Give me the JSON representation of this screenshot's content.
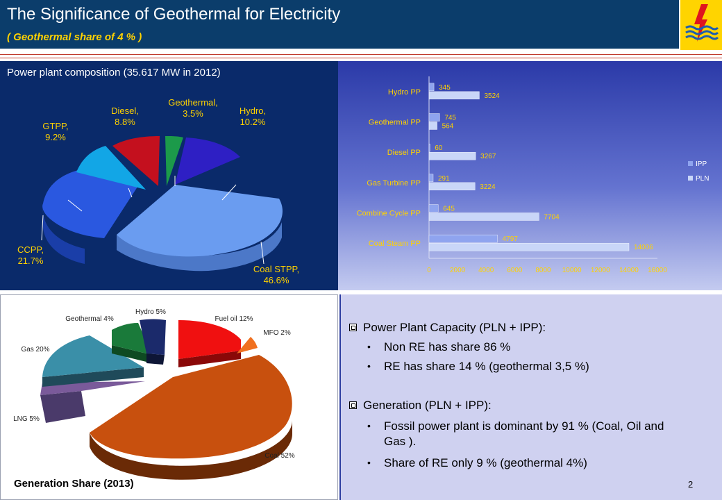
{
  "header": {
    "title": "The Significance of Geothermal for Electricity",
    "subtitle": "( Geothermal share of 4 % )"
  },
  "colors": {
    "header_bg": "#0b3d6b",
    "accent_yellow": "#ffd200",
    "rule_red": "#c0392b"
  },
  "logo": {
    "icon": "pln-lightning-logo-icon"
  },
  "pie_2012": {
    "title": "Power plant composition (35.617 MW in 2012)",
    "labels": {
      "geothermal": [
        "Geothermal,",
        "3.5%"
      ],
      "hydro": [
        "Hydro,",
        "10.2%"
      ],
      "diesel": [
        "Diesel,",
        "8.8%"
      ],
      "gtpp": [
        "GTPP,",
        "9.2%"
      ],
      "ccpp": [
        "CCPP,",
        "21.7%"
      ],
      "coal": [
        "Coal STPP,",
        "46.6%"
      ]
    }
  },
  "pie_2013": {
    "title": "Generation Share (2013)",
    "labels": {
      "hydro": "Hydro 5%",
      "geothermal": "Geothermal 4%",
      "fuel_oil": "Fuel oil 12%",
      "mfo": "MFO 2%",
      "gas": "Gas 20%",
      "lng": "LNG 5%",
      "coal": "Coal 52%"
    }
  },
  "chart_data": [
    {
      "type": "pie",
      "title": "Power plant composition (35.617 MW in 2012)",
      "categories": [
        "Geothermal",
        "Hydro",
        "Coal STPP",
        "CCPP",
        "GTPP",
        "Diesel"
      ],
      "values": [
        3.5,
        10.2,
        46.6,
        21.7,
        9.2,
        8.8
      ],
      "colors": [
        "#1c9a4a",
        "#2e1fc4",
        "#6a9cf0",
        "#2a58e0",
        "#12a6e6",
        "#c4101e"
      ]
    },
    {
      "type": "bar",
      "orientation": "horizontal",
      "categories": [
        "Hydro PP",
        "Geothermal PP",
        "Diesel PP",
        "Gas Turbine PP",
        "Combine Cycle PP",
        "Coal Steam PP"
      ],
      "series": [
        {
          "name": "IPP",
          "values": [
            345,
            745,
            60,
            291,
            645,
            4797
          ],
          "color": "#8fa4ef"
        },
        {
          "name": "PLN",
          "values": [
            3524,
            564,
            3267,
            3224,
            7704,
            14006
          ],
          "color": "#c9d6f8"
        }
      ],
      "xlim": [
        0,
        16000
      ],
      "xticks": [
        0,
        2000,
        4000,
        6000,
        8000,
        10000,
        12000,
        14000,
        16000
      ],
      "legend": "right"
    },
    {
      "type": "pie",
      "title": "Generation Share (2013)",
      "categories": [
        "Hydro",
        "Fuel oil",
        "MFO",
        "Coal",
        "LNG",
        "Gas",
        "Geothermal"
      ],
      "values": [
        5,
        12,
        2,
        52,
        5,
        20,
        4
      ],
      "colors": [
        "#1b2a6b",
        "#f01010",
        "#f07020",
        "#c8500e",
        "#7a5a9a",
        "#3a8fa8",
        "#1a7a3a"
      ]
    }
  ],
  "text_panel": {
    "h1": "Power Plant Capacity (PLN + IPP):",
    "b1": "Non RE  has  share 86 %",
    "b2": "RE has share 14 % (geothermal 3,5 %)",
    "h2": "Generation (PLN + IPP):",
    "b3_line1": "Fossil power plant is dominant by 91 % (Coal, Oil and",
    "b3_line2": "Gas ).",
    "b4": "Share of RE only 9 % (geothermal 4%)"
  },
  "page_number": "2"
}
